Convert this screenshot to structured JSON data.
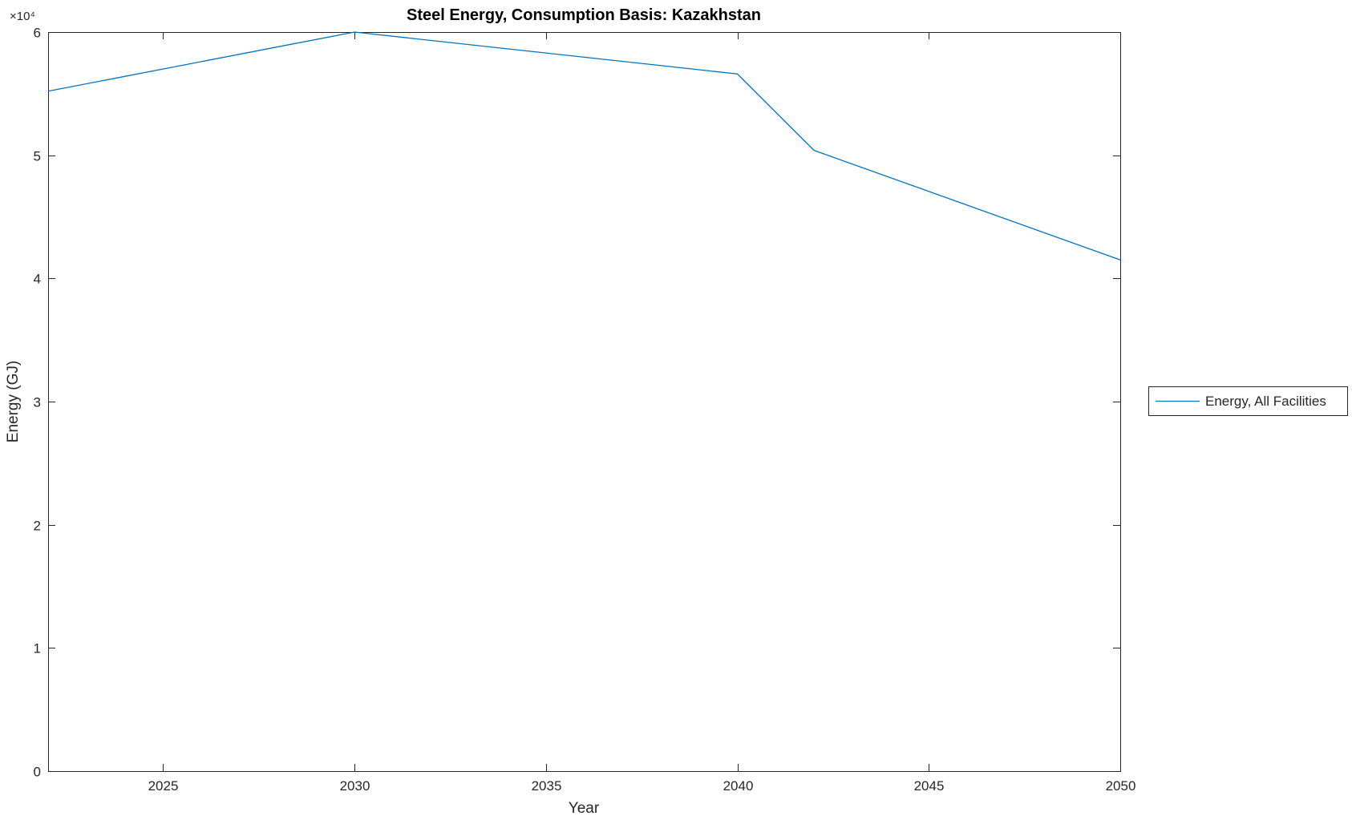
{
  "title": "Steel Energy, Consumption Basis: Kazakhstan",
  "chart_data": {
    "type": "line",
    "title": "Steel Energy, Consumption Basis: Kazakhstan",
    "xlabel": "Year",
    "ylabel": "Energy (GJ)",
    "x": [
      2022,
      2030,
      2040,
      2042,
      2050
    ],
    "series": [
      {
        "name": "Energy, All Facilities",
        "values": [
          55200,
          60000,
          56600,
          50400,
          41500
        ]
      }
    ],
    "xlim": [
      2022,
      2050
    ],
    "ylim": [
      0,
      60000
    ],
    "x_ticks": [
      2025,
      2030,
      2035,
      2040,
      2045,
      2050
    ],
    "x_tick_labels": [
      "2025",
      "2030",
      "2035",
      "2040",
      "2045",
      "2050"
    ],
    "y_ticks": [
      0,
      10000,
      20000,
      30000,
      40000,
      50000,
      60000
    ],
    "y_tick_labels": [
      "0",
      "1",
      "2",
      "3",
      "4",
      "5",
      "6"
    ],
    "y_axis_exponent": "×10⁴",
    "legend": {
      "position": "right-outside",
      "entries": [
        "Energy, All Facilities"
      ]
    },
    "colors": {
      "line": "#0072BD",
      "axis": "#262626",
      "background": "#FFFFFF"
    },
    "grid": false
  }
}
